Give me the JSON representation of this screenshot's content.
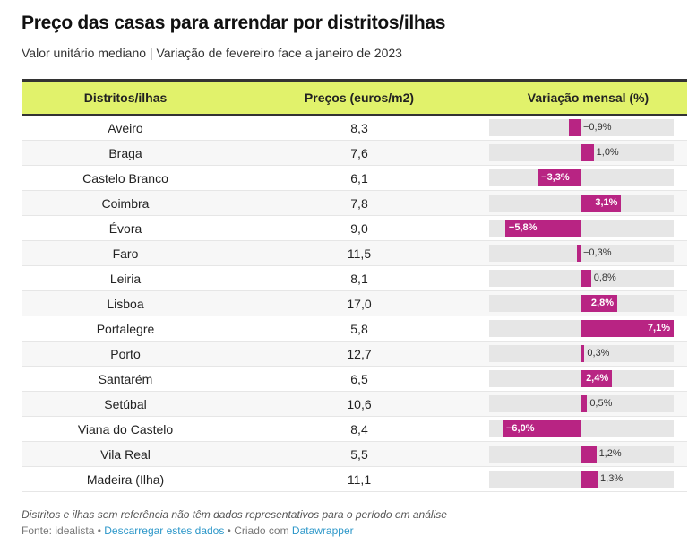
{
  "header": {
    "title": "Preço das casas para arrendar por distritos/ilhas",
    "subtitle": "Valor unitário mediano | Variação de fevereiro face a janeiro de 2023"
  },
  "table": {
    "columns": [
      "Distritos/ilhas",
      "Preços (euros/m2)",
      "Variação mensal (%)"
    ]
  },
  "colors": {
    "header_bg": "#e1f26b",
    "bar": "#b82483",
    "track": "#e6e6e6"
  },
  "chart_data": {
    "type": "table",
    "title": "Preço das casas para arrendar por distritos/ilhas",
    "subtitle": "Valor unitário mediano | Variação de fevereiro face a janeiro de 2023",
    "columns": [
      "Distritos/ilhas",
      "Preços (euros/m2)",
      "Variação mensal (%)"
    ],
    "bar_range": [
      -7.1,
      7.1
    ],
    "rows": [
      {
        "name": "Aveiro",
        "price": "8,3",
        "change": -0.9,
        "change_label": "−0,9%"
      },
      {
        "name": "Braga",
        "price": "7,6",
        "change": 1.0,
        "change_label": "1,0%"
      },
      {
        "name": "Castelo Branco",
        "price": "6,1",
        "change": -3.3,
        "change_label": "−3,3%"
      },
      {
        "name": "Coimbra",
        "price": "7,8",
        "change": 3.1,
        "change_label": "3,1%"
      },
      {
        "name": "Évora",
        "price": "9,0",
        "change": -5.8,
        "change_label": "−5,8%"
      },
      {
        "name": "Faro",
        "price": "11,5",
        "change": -0.3,
        "change_label": "−0,3%"
      },
      {
        "name": "Leiria",
        "price": "8,1",
        "change": 0.8,
        "change_label": "0,8%"
      },
      {
        "name": "Lisboa",
        "price": "17,0",
        "change": 2.8,
        "change_label": "2,8%"
      },
      {
        "name": "Portalegre",
        "price": "5,8",
        "change": 7.1,
        "change_label": "7,1%"
      },
      {
        "name": "Porto",
        "price": "12,7",
        "change": 0.3,
        "change_label": "0,3%"
      },
      {
        "name": "Santarém",
        "price": "6,5",
        "change": 2.4,
        "change_label": "2,4%"
      },
      {
        "name": "Setúbal",
        "price": "10,6",
        "change": 0.5,
        "change_label": "0,5%"
      },
      {
        "name": "Viana do Castelo",
        "price": "8,4",
        "change": -6.0,
        "change_label": "−6,0%"
      },
      {
        "name": "Vila Real",
        "price": "5,5",
        "change": 1.2,
        "change_label": "1,2%"
      },
      {
        "name": "Madeira (Ilha)",
        "price": "11,1",
        "change": 1.3,
        "change_label": "1,3%"
      }
    ]
  },
  "footer": {
    "notes": "Distritos e ilhas sem referência não têm dados representativos para o período em análise",
    "source_prefix": "Fonte: idealista",
    "separator": " • ",
    "download_link": "Descarregar estes dados",
    "created_prefix": "Criado com ",
    "datawrapper_link": "Datawrapper"
  }
}
